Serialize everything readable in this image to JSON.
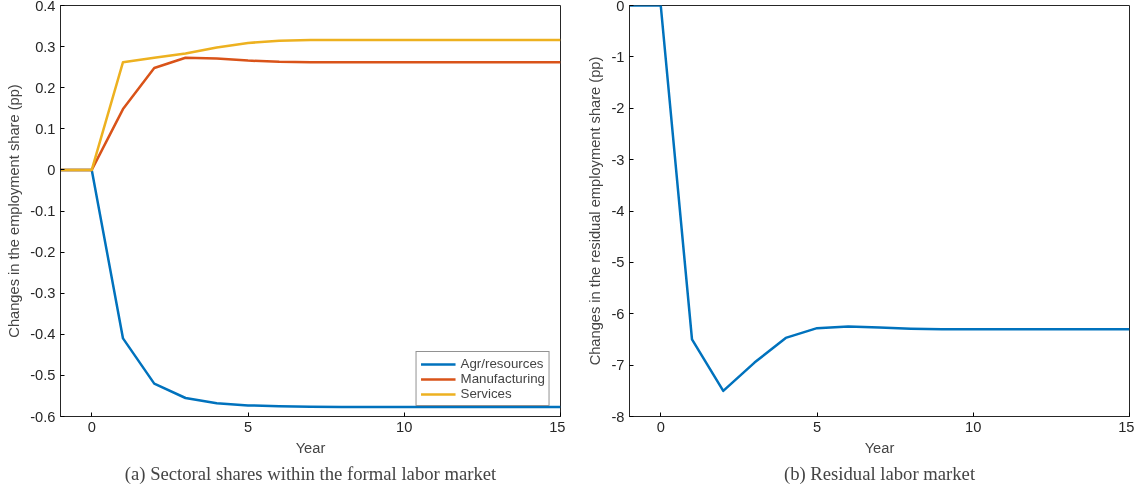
{
  "chart_data": [
    {
      "type": "line",
      "title": "(a) Sectoral shares within the formal labor market",
      "xlabel": "Year",
      "ylabel": "Changes in the employment share (pp)",
      "x": [
        -1,
        0,
        1,
        2,
        3,
        4,
        5,
        6,
        7,
        8,
        9,
        10,
        11,
        12,
        13,
        14,
        15
      ],
      "xlim": [
        -1,
        15
      ],
      "xticks": [
        0,
        5,
        10,
        15
      ],
      "ylim": [
        -0.6,
        0.4
      ],
      "yticks": [
        -0.6,
        -0.5,
        -0.4,
        -0.3,
        -0.2,
        -0.1,
        0,
        0.1,
        0.2,
        0.3,
        0.4
      ],
      "grid": false,
      "legend": "bottom right",
      "line_style": "solid",
      "marker": "none",
      "series": [
        {
          "name": "Agr/resources",
          "color": "#0072bd",
          "values": [
            0,
            0,
            -0.41,
            -0.52,
            -0.555,
            -0.568,
            -0.573,
            -0.575,
            -0.576,
            -0.577,
            -0.577,
            -0.577,
            -0.577,
            -0.577,
            -0.577,
            -0.577,
            -0.577
          ]
        },
        {
          "name": "Manufacturing",
          "color": "#d95319",
          "values": [
            0,
            0,
            0.148,
            0.248,
            0.273,
            0.271,
            0.266,
            0.263,
            0.262,
            0.262,
            0.262,
            0.262,
            0.262,
            0.262,
            0.262,
            0.262,
            0.262
          ]
        },
        {
          "name": "Services",
          "color": "#edb120",
          "values": [
            0,
            0,
            0.262,
            0.273,
            0.283,
            0.298,
            0.309,
            0.314,
            0.316,
            0.316,
            0.316,
            0.316,
            0.316,
            0.316,
            0.316,
            0.316,
            0.316
          ]
        }
      ]
    },
    {
      "type": "line",
      "title": "(b) Residual labor market",
      "xlabel": "Year",
      "ylabel": "Changes in the residual employment share (pp)",
      "x": [
        -1,
        0,
        1,
        2,
        3,
        4,
        5,
        6,
        7,
        8,
        9,
        10,
        11,
        12,
        13,
        14,
        15
      ],
      "xlim": [
        -1,
        15
      ],
      "xticks": [
        0,
        5,
        10,
        15
      ],
      "ylim": [
        -8,
        0
      ],
      "yticks": [
        -8,
        -7,
        -6,
        -5,
        -4,
        -3,
        -2,
        -1,
        0
      ],
      "grid": false,
      "legend": false,
      "line_style": "solid",
      "marker": "none",
      "series": [
        {
          "color": "#0072bd",
          "values": [
            0,
            0,
            -6.5,
            -7.5,
            -6.95,
            -6.47,
            -6.28,
            -6.25,
            -6.27,
            -6.29,
            -6.3,
            -6.3,
            -6.3,
            -6.3,
            -6.3,
            -6.3,
            -6.3
          ]
        }
      ]
    }
  ]
}
